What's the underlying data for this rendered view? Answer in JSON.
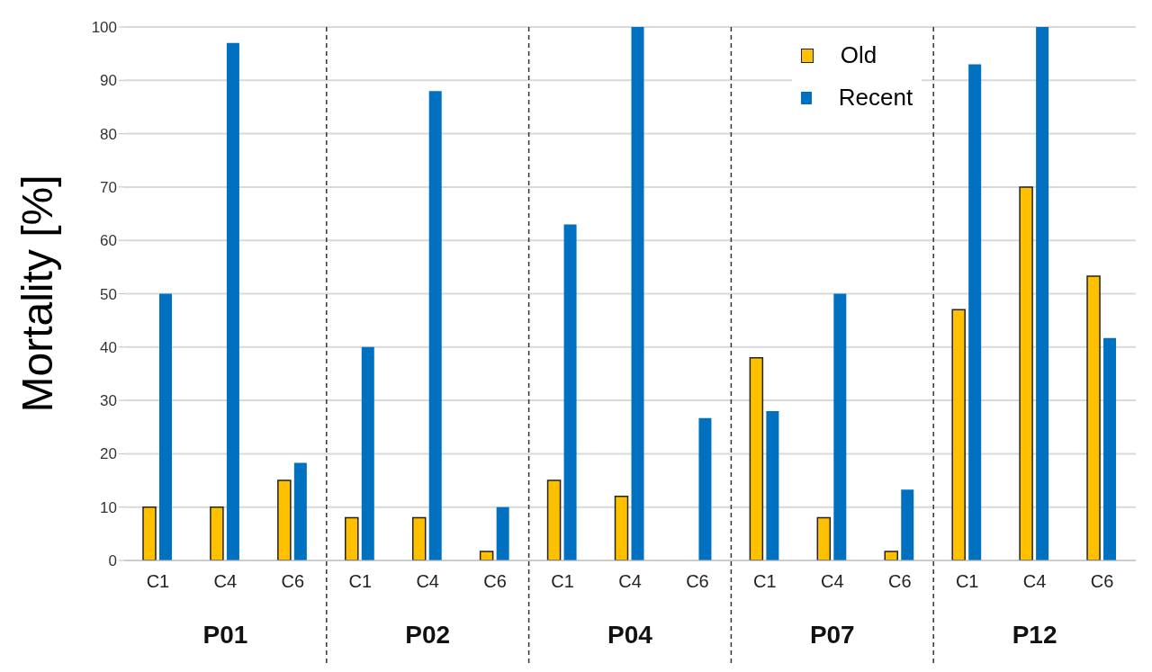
{
  "chart_data": {
    "type": "bar",
    "ylabel": "Mortality [%]",
    "categories": [
      "C1",
      "C4",
      "C6",
      "C1",
      "C4",
      "C6",
      "C1",
      "C4",
      "C6",
      "C1",
      "C4",
      "C6",
      "C1",
      "C4",
      "C6"
    ],
    "series": [
      {
        "name": "Old",
        "color": "#ffc000",
        "values": [
          10,
          10,
          15,
          8,
          8,
          1.7,
          15,
          12,
          null,
          38,
          8,
          1.7,
          47,
          70,
          53.3
        ]
      },
      {
        "name": "Recent",
        "color": "#0070c0",
        "values": [
          50,
          97,
          18.3,
          40,
          88,
          10,
          63,
          100,
          26.7,
          28,
          50,
          13.3,
          93,
          100,
          41.7
        ]
      }
    ],
    "annotations": [
      "P01",
      "P02",
      "P04",
      "P07",
      "P12"
    ],
    "ylim": [
      0,
      100
    ],
    "yticks": [
      0,
      10,
      20,
      30,
      40,
      50,
      60,
      70,
      80,
      90,
      100
    ],
    "grid": "y",
    "legend": "top right"
  }
}
